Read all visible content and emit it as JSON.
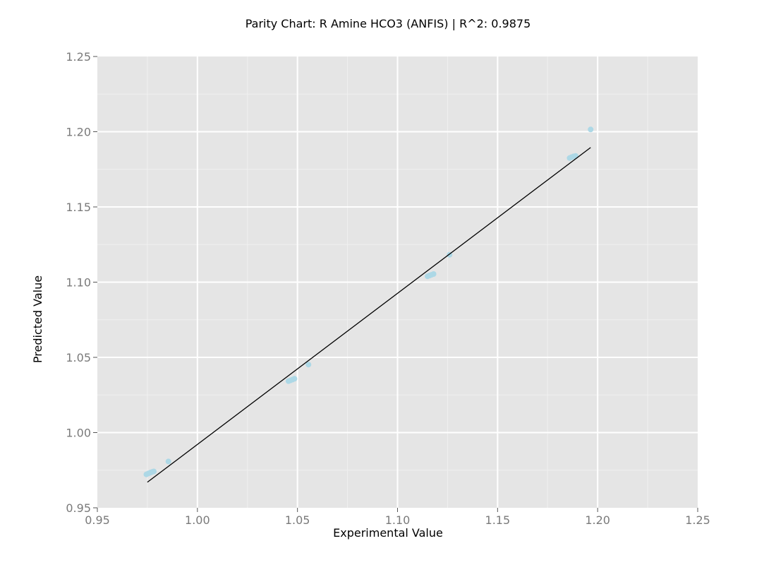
{
  "chart_data": {
    "type": "scatter",
    "title": "Parity Chart: R Amine HCO3 (ANFIS) | R^2: 0.9875",
    "xlabel": "Experimental Value",
    "ylabel": "Predicted Value",
    "xlim": [
      0.95,
      1.25
    ],
    "ylim": [
      0.95,
      1.25
    ],
    "x_ticks": [
      "0.95",
      "1.00",
      "1.05",
      "1.10",
      "1.15",
      "1.20",
      "1.25"
    ],
    "y_ticks": [
      "0.95",
      "1.00",
      "1.05",
      "1.10",
      "1.15",
      "1.20",
      "1.25"
    ],
    "grid": true,
    "legend": "none",
    "colors": {
      "panel_background": "#e5e5e5",
      "grid_major": "#ffffff",
      "grid_minor": "#f0f0f0",
      "points": "#add8e6",
      "fit_line": "#000000",
      "tick_text": "#7a7a7a"
    },
    "series": [
      {
        "kind": "points",
        "points": [
          [
            0.9745,
            0.9722
          ],
          [
            0.9755,
            0.9728
          ],
          [
            0.9765,
            0.9734
          ],
          [
            0.9775,
            0.9739
          ],
          [
            0.9782,
            0.9742
          ],
          [
            0.9855,
            0.9808
          ],
          [
            1.0455,
            1.0342
          ],
          [
            1.0465,
            1.0347
          ],
          [
            1.0475,
            1.0352
          ],
          [
            1.0485,
            1.0358
          ],
          [
            1.0555,
            1.0452
          ],
          [
            1.115,
            1.1039
          ],
          [
            1.116,
            1.1044
          ],
          [
            1.117,
            1.1049
          ],
          [
            1.118,
            1.1054
          ],
          [
            1.126,
            1.1182
          ],
          [
            1.186,
            1.1825
          ],
          [
            1.187,
            1.1831
          ],
          [
            1.188,
            1.1836
          ],
          [
            1.189,
            1.1839
          ],
          [
            1.1965,
            1.2015
          ]
        ]
      },
      {
        "kind": "line",
        "points": [
          [
            0.975,
            0.967
          ],
          [
            1.1965,
            1.1895
          ]
        ]
      }
    ]
  }
}
